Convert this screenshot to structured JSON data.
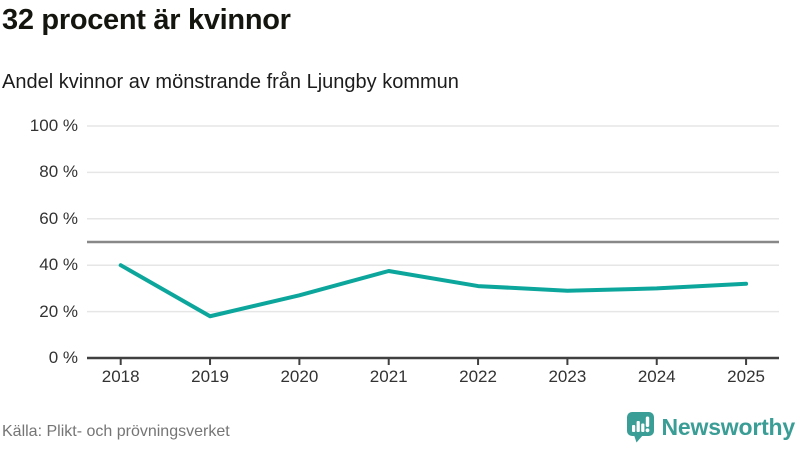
{
  "header": {
    "title": "32 procent är kvinnor",
    "subtitle": "Andel kvinnor av mönstrande från Ljungby kommun"
  },
  "chart_data": {
    "type": "line",
    "title": "32 procent är kvinnor",
    "subtitle": "Andel kvinnor av mönstrande från Ljungby kommun",
    "categories": [
      "2018",
      "2019",
      "2020",
      "2021",
      "2022",
      "2023",
      "2024",
      "2025"
    ],
    "values": [
      40,
      18,
      27,
      37.5,
      31,
      29,
      30,
      32
    ],
    "unit": "%",
    "ylim": [
      0,
      100
    ],
    "y_ticks": {
      "values": [
        0,
        20,
        40,
        60,
        80,
        100
      ],
      "labels": [
        "0 %",
        "20 %",
        "40 %",
        "60 %",
        "80 %",
        "100 %"
      ]
    },
    "reference_line": 50,
    "grid": "horizontal",
    "legend": "none",
    "line_color": "#0da69c",
    "reference_color": "#888888",
    "axis_color": "#404040",
    "grid_color": "#e6e6e6"
  },
  "footer": {
    "source": "Källa: Plikt- och prövningsverket",
    "brand": "Newsworthy",
    "brand_color": "#3a9d96"
  }
}
